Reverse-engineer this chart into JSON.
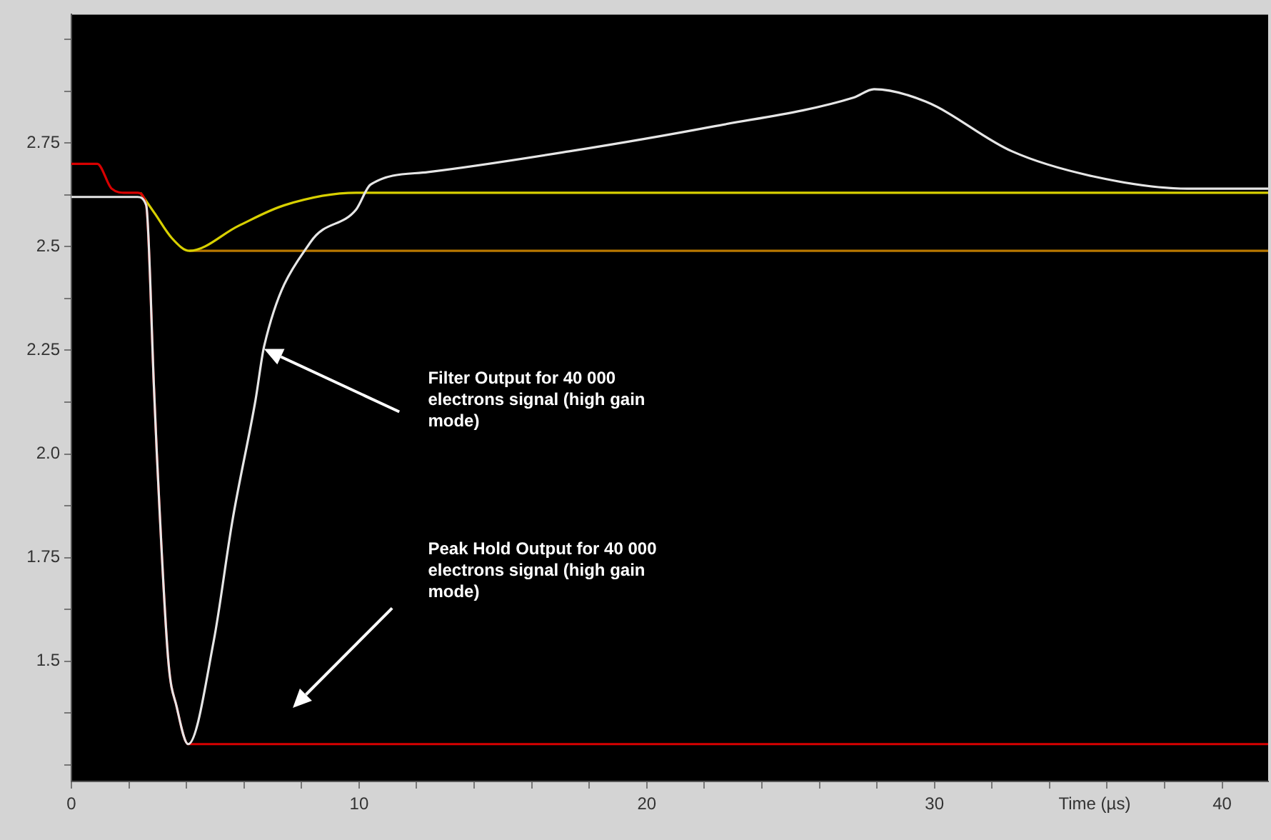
{
  "chart_data": {
    "type": "line",
    "xlabel": "Time (µs)",
    "xlim": [
      0,
      41.6
    ],
    "ylim": [
      1.21,
      3.06
    ],
    "xticks": [
      0,
      {
        "value": 2,
        "label": null
      },
      {
        "value": 4,
        "label": null
      },
      {
        "value": 6,
        "label": null
      },
      {
        "value": 8,
        "label": null
      },
      10,
      {
        "value": 12,
        "label": null
      },
      {
        "value": 14,
        "label": null
      },
      {
        "value": 16,
        "label": null
      },
      {
        "value": 18,
        "label": null
      },
      20,
      {
        "value": 22,
        "label": null
      },
      {
        "value": 24,
        "label": null
      },
      {
        "value": 26,
        "label": null
      },
      {
        "value": 28,
        "label": null
      },
      30,
      {
        "value": 32,
        "label": null
      },
      {
        "value": 34,
        "label": null
      },
      {
        "value": 36,
        "label": null
      },
      {
        "value": 38,
        "label": null
      },
      40
    ],
    "yticks": [
      {
        "value": 1.25,
        "label": null
      },
      {
        "value": 1.375,
        "label": null
      },
      1.5,
      {
        "value": 1.625,
        "label": null
      },
      1.75,
      {
        "value": 1.875,
        "label": null
      },
      {
        "value": 2,
        "label": "2.0"
      },
      {
        "value": 2.125,
        "label": null
      },
      2.25,
      {
        "value": 2.375,
        "label": null
      },
      2.5,
      {
        "value": 2.625,
        "label": null
      },
      2.75,
      {
        "value": 2.875,
        "label": null
      },
      {
        "value": 3,
        "label": null
      }
    ],
    "grid": false,
    "legend": false,
    "marker": "none",
    "line_style": "solid",
    "series": [
      {
        "color": "#e6e6e6",
        "x": [
          0,
          2.3,
          2.6,
          2.87,
          2.97,
          3.37,
          3.66,
          4.06,
          4.95,
          5.6,
          6.4,
          6.7,
          8.3,
          9.9,
          10.4,
          12.4,
          17.3,
          22.3,
          27.2,
          27.9,
          29.7,
          32.7,
          35.5,
          38.8,
          41.6
        ],
        "values": [
          2.62,
          2.62,
          2.6,
          2.16,
          2.0,
          1.5,
          1.39,
          1.3,
          1.55,
          1.84,
          2.13,
          2.26,
          2.51,
          2.59,
          2.65,
          2.68,
          2.73,
          2.79,
          2.86,
          2.88,
          2.85,
          2.73,
          2.67,
          2.64,
          2.64
        ]
      },
      {
        "color": "#d80000",
        "x": [
          0,
          0.9,
          1.4,
          1.9,
          2.3,
          2.6,
          2.87,
          2.97,
          3.37,
          3.66,
          4.06,
          41.6
        ],
        "values": [
          2.7,
          2.7,
          2.64,
          2.63,
          2.63,
          2.6,
          2.16,
          2.0,
          1.5,
          1.39,
          1.3,
          1.3
        ]
      },
      {
        "color": "#d8d000",
        "x": [
          2.4,
          2.9,
          3.5,
          4.1,
          5.8,
          7.4,
          9.9,
          41.6
        ],
        "values": [
          2.63,
          2.58,
          2.52,
          2.49,
          2.55,
          2.6,
          2.63,
          2.63
        ]
      },
      {
        "color": "#b87800",
        "x": [
          4.1,
          41.6
        ],
        "values": [
          2.49,
          2.49
        ]
      }
    ],
    "annotations": [
      "Filter Output for 40 000 electrons signal (high gain mode)",
      "Peak Hold Output for 40 000 electrons signal (high gain mode)"
    ]
  }
}
